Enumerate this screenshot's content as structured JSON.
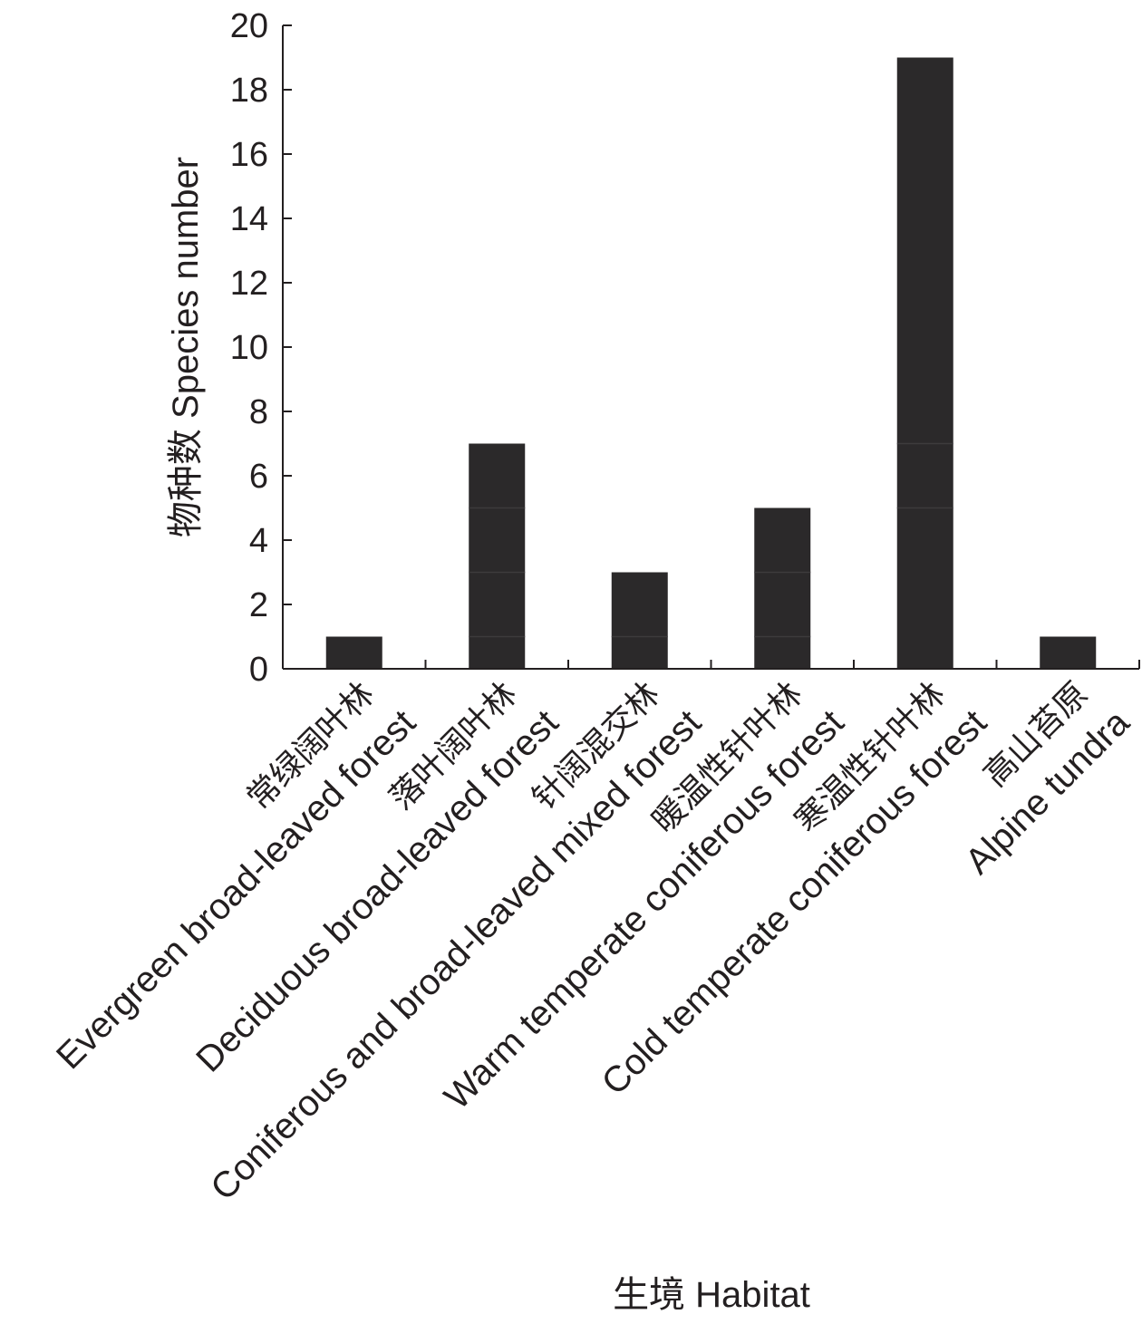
{
  "chart_data": {
    "type": "bar",
    "xlabel": "生境 Habitat",
    "ylabel": "物种数 Species number",
    "ylim": [
      0,
      20
    ],
    "yticks": [
      0,
      2,
      4,
      6,
      8,
      10,
      12,
      14,
      16,
      18,
      20
    ],
    "grid": false,
    "bar_color": "#2b292a",
    "segment_line_color": "#3d3b3c",
    "categories": [
      {
        "zh": "常绿阔叶林",
        "en": "Evergreen broad-leaved forest"
      },
      {
        "zh": "落叶阔叶林",
        "en": "Deciduous broad-leaved forest"
      },
      {
        "zh": "针阔混交林",
        "en": "Coniferous and broad-leaved mixed forest"
      },
      {
        "zh": "暖温性针叶林",
        "en": "Warm temperate coniferous forest"
      },
      {
        "zh": "寒温性针叶林",
        "en": "Cold temperate coniferous forest"
      },
      {
        "zh": "高山苔原",
        "en": "Alpine tundra"
      }
    ],
    "values": [
      1,
      7,
      3,
      5,
      19,
      1
    ],
    "segments": [
      [
        1
      ],
      [
        1,
        3,
        5,
        7
      ],
      [
        1,
        3
      ],
      [
        1,
        3,
        5
      ],
      [
        5,
        7,
        19
      ],
      [
        1
      ]
    ]
  }
}
